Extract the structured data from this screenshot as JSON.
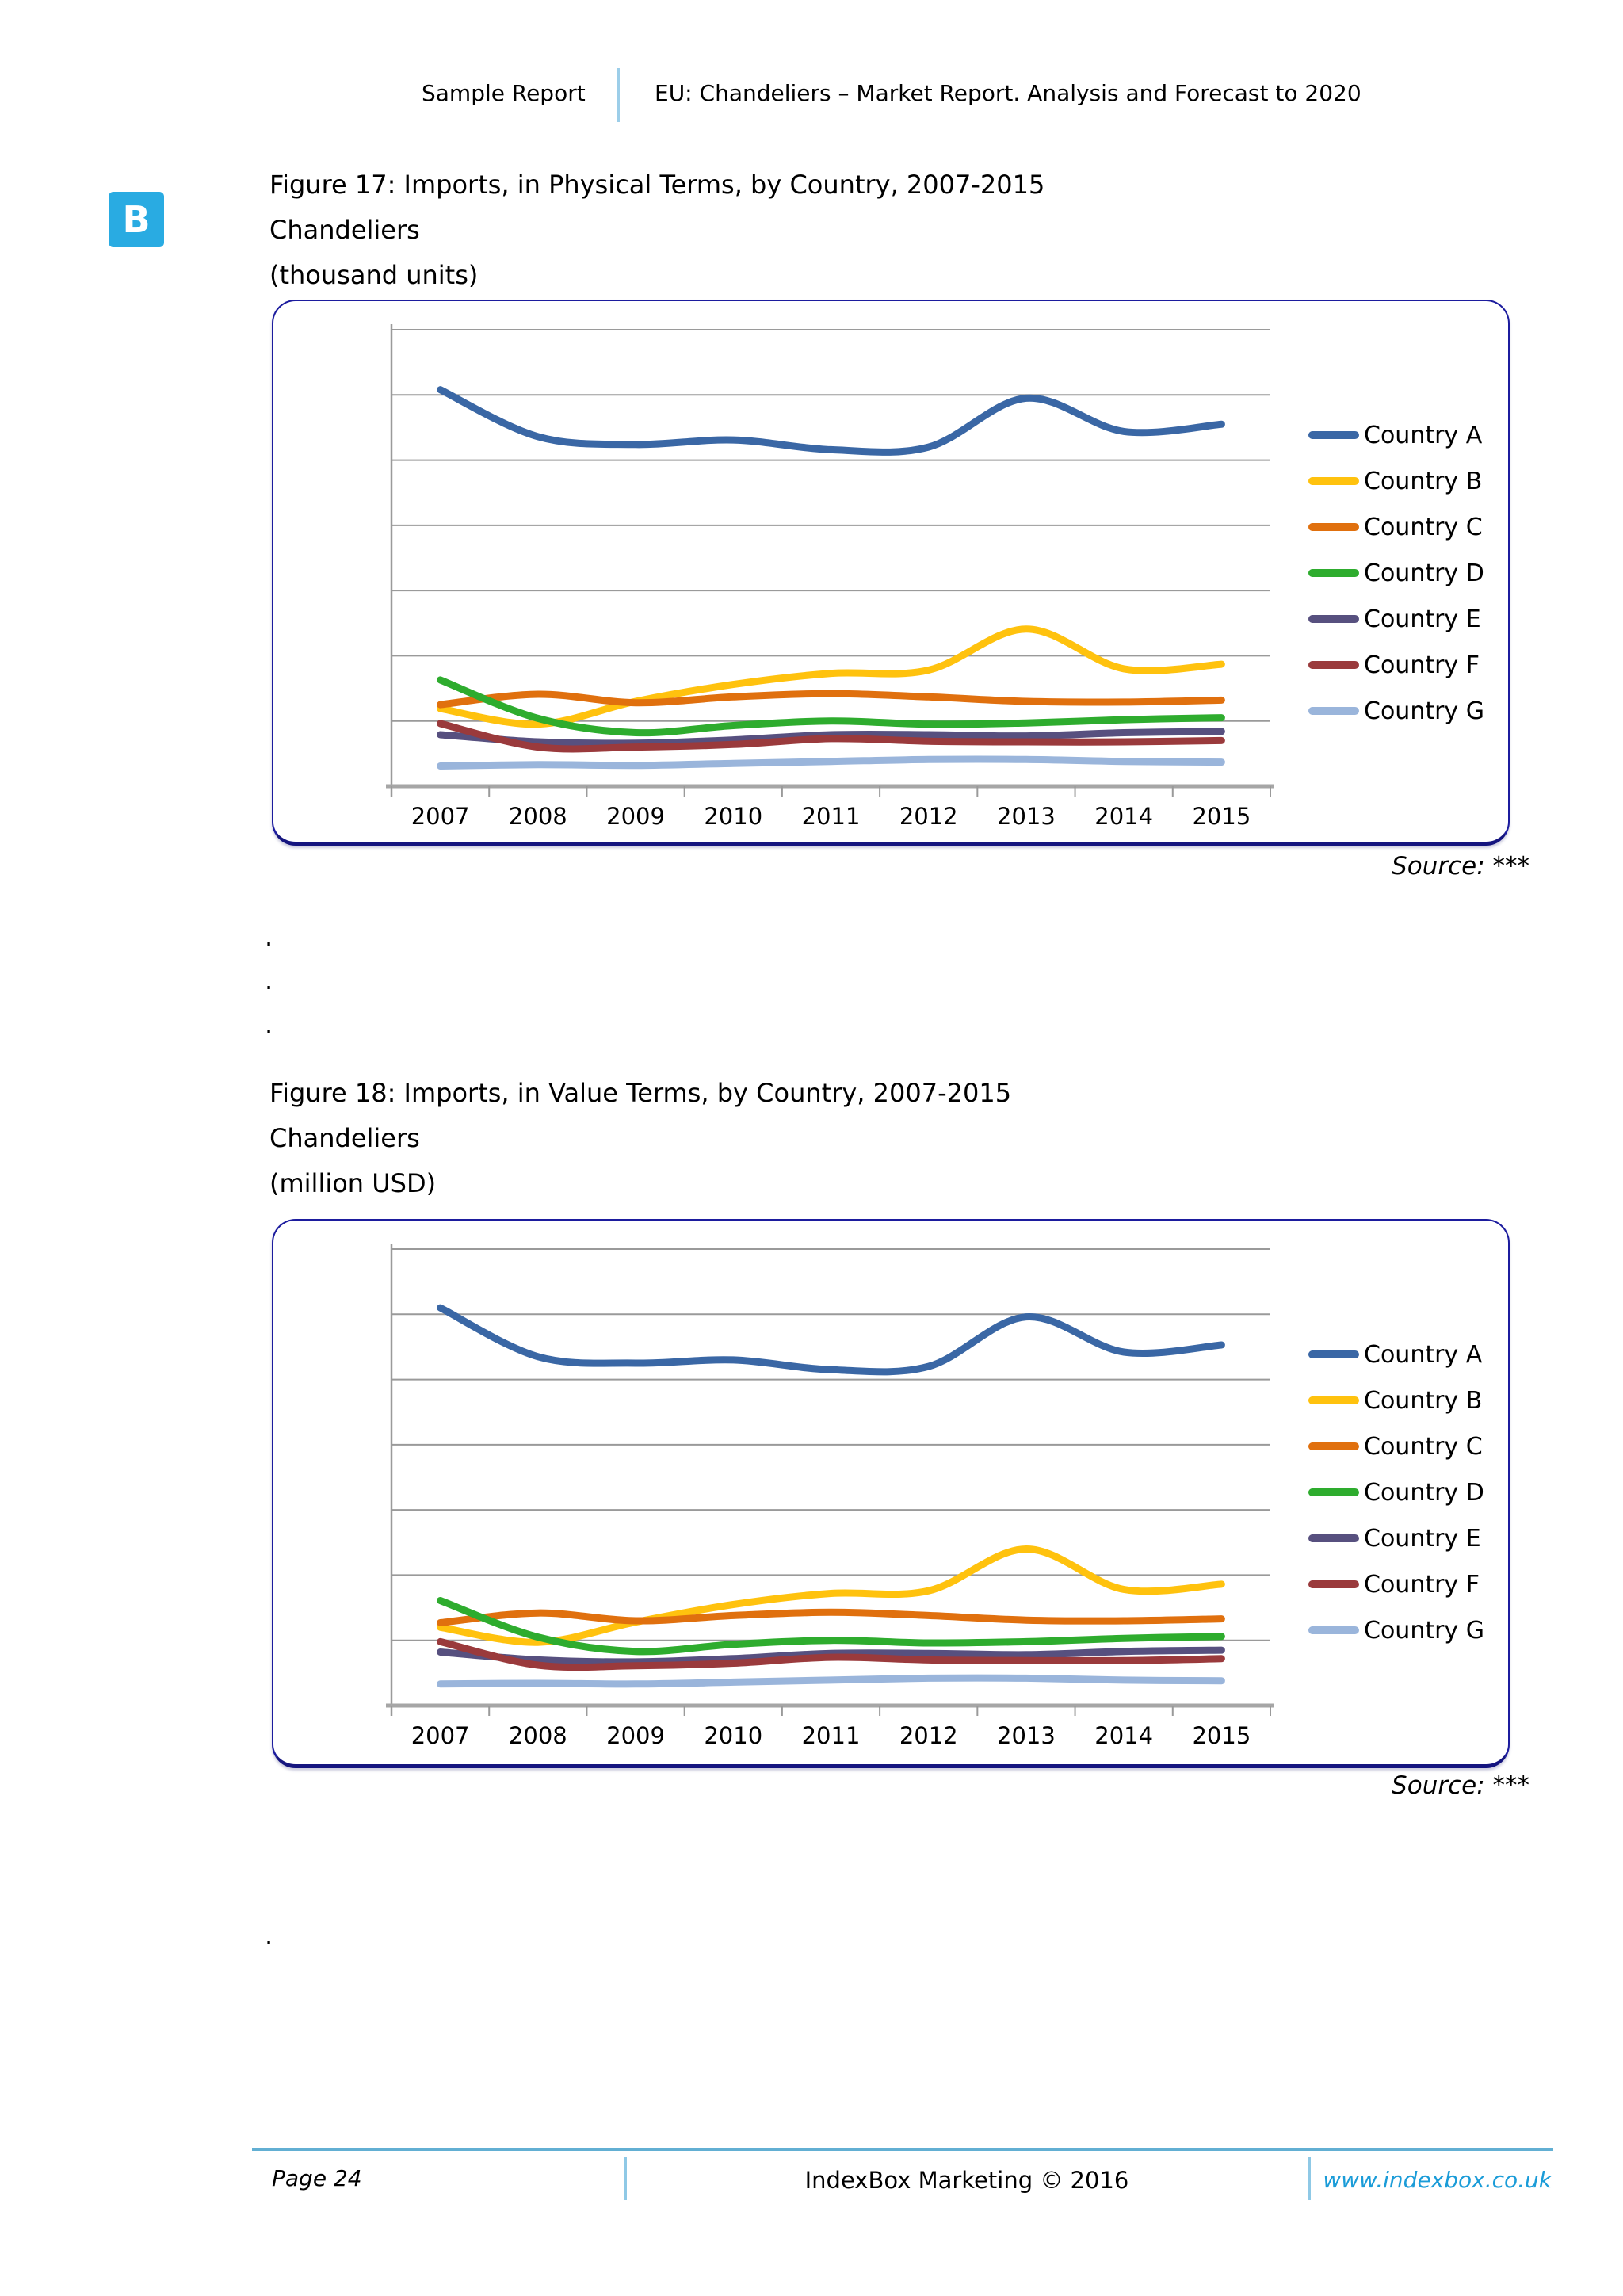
{
  "page": {
    "header": {
      "left": "Sample Report",
      "title": "EU: Chandeliers – Market Report. Analysis and Forecast to 2020"
    },
    "logo": {
      "letter": "B",
      "color": "#29ABE2"
    },
    "figure17": {
      "title": "Figure 17: Imports, in Physical Terms, by Country, 2007-2015",
      "product": "Chandeliers",
      "unit": "(thousand units)",
      "source": "Source: ***"
    },
    "figure18": {
      "title": "Figure 18: Imports, in Value Terms, by Country, 2007-2015",
      "product": "Chandeliers",
      "unit": "(million USD)",
      "source": "Source: ***"
    },
    "dots": [
      ".",
      ".",
      "."
    ],
    "dot_single": ".",
    "footer": {
      "page": "Page 24",
      "center": "IndexBox Marketing © 2016",
      "link": "www.indexbox.co.uk"
    }
  },
  "chart_data": [
    {
      "type": "line",
      "title": "Figure 17: Imports, in Physical Terms, by Country, 2007-2015 — Chandeliers (thousand units)",
      "categories": [
        "2007",
        "2008",
        "2009",
        "2010",
        "2011",
        "2012",
        "2013",
        "2014",
        "2015"
      ],
      "series": [
        {
          "name": "Country A",
          "color": "#3A67A5",
          "values": [
            6.08,
            5.36,
            5.24,
            5.31,
            5.16,
            5.2,
            5.95,
            5.44,
            5.55
          ]
        },
        {
          "name": "Country B",
          "color": "#FFC20E",
          "values": [
            1.19,
            0.95,
            1.3,
            1.56,
            1.73,
            1.78,
            2.41,
            1.8,
            1.87
          ]
        },
        {
          "name": "Country C",
          "color": "#E0700E",
          "values": [
            1.25,
            1.41,
            1.28,
            1.37,
            1.42,
            1.37,
            1.3,
            1.29,
            1.32
          ]
        },
        {
          "name": "Country D",
          "color": "#2EAC2E",
          "values": [
            1.63,
            1.04,
            0.82,
            0.93,
            1.0,
            0.95,
            0.97,
            1.02,
            1.05
          ]
        },
        {
          "name": "Country E",
          "color": "#57507F",
          "values": [
            0.79,
            0.68,
            0.66,
            0.71,
            0.79,
            0.79,
            0.77,
            0.82,
            0.84
          ]
        },
        {
          "name": "Country F",
          "color": "#9A3A3C",
          "values": [
            0.96,
            0.6,
            0.6,
            0.64,
            0.73,
            0.69,
            0.68,
            0.68,
            0.7
          ]
        },
        {
          "name": "Country G",
          "color": "#9AB5DB",
          "values": [
            0.31,
            0.33,
            0.32,
            0.35,
            0.38,
            0.41,
            0.41,
            0.38,
            0.37
          ]
        }
      ],
      "xlabel": "",
      "ylabel": "",
      "ylim": [
        0,
        7.0
      ],
      "y_ticks_labeled": false,
      "gridlines": "horizontal",
      "legend_position": "right",
      "smooth_lines": true
    },
    {
      "type": "line",
      "title": "Figure 18: Imports, in Value Terms, by Country, 2007-2015 — Chandeliers (million USD)",
      "categories": [
        "2007",
        "2008",
        "2009",
        "2010",
        "2011",
        "2012",
        "2013",
        "2014",
        "2015"
      ],
      "series": [
        {
          "name": "Country A",
          "color": "#3A67A5",
          "values": [
            6.1,
            5.35,
            5.25,
            5.3,
            5.15,
            5.2,
            5.96,
            5.42,
            5.53
          ]
        },
        {
          "name": "Country B",
          "color": "#FFC20E",
          "values": [
            1.2,
            0.97,
            1.28,
            1.55,
            1.72,
            1.76,
            2.4,
            1.78,
            1.86
          ]
        },
        {
          "name": "Country C",
          "color": "#E0700E",
          "values": [
            1.27,
            1.42,
            1.3,
            1.38,
            1.43,
            1.38,
            1.31,
            1.3,
            1.33
          ]
        },
        {
          "name": "Country D",
          "color": "#2EAC2E",
          "values": [
            1.61,
            1.05,
            0.83,
            0.94,
            1.0,
            0.96,
            0.98,
            1.03,
            1.06
          ]
        },
        {
          "name": "Country E",
          "color": "#57507F",
          "values": [
            0.82,
            0.7,
            0.67,
            0.72,
            0.8,
            0.8,
            0.78,
            0.83,
            0.85
          ]
        },
        {
          "name": "Country F",
          "color": "#9A3A3C",
          "values": [
            0.98,
            0.62,
            0.61,
            0.65,
            0.74,
            0.7,
            0.69,
            0.69,
            0.72
          ]
        },
        {
          "name": "Country G",
          "color": "#9AB5DB",
          "values": [
            0.33,
            0.34,
            0.33,
            0.36,
            0.39,
            0.42,
            0.42,
            0.39,
            0.38
          ]
        }
      ],
      "xlabel": "",
      "ylabel": "",
      "ylim": [
        0,
        7.0
      ],
      "y_ticks_labeled": false,
      "gridlines": "horizontal",
      "legend_position": "right",
      "smooth_lines": true
    }
  ]
}
